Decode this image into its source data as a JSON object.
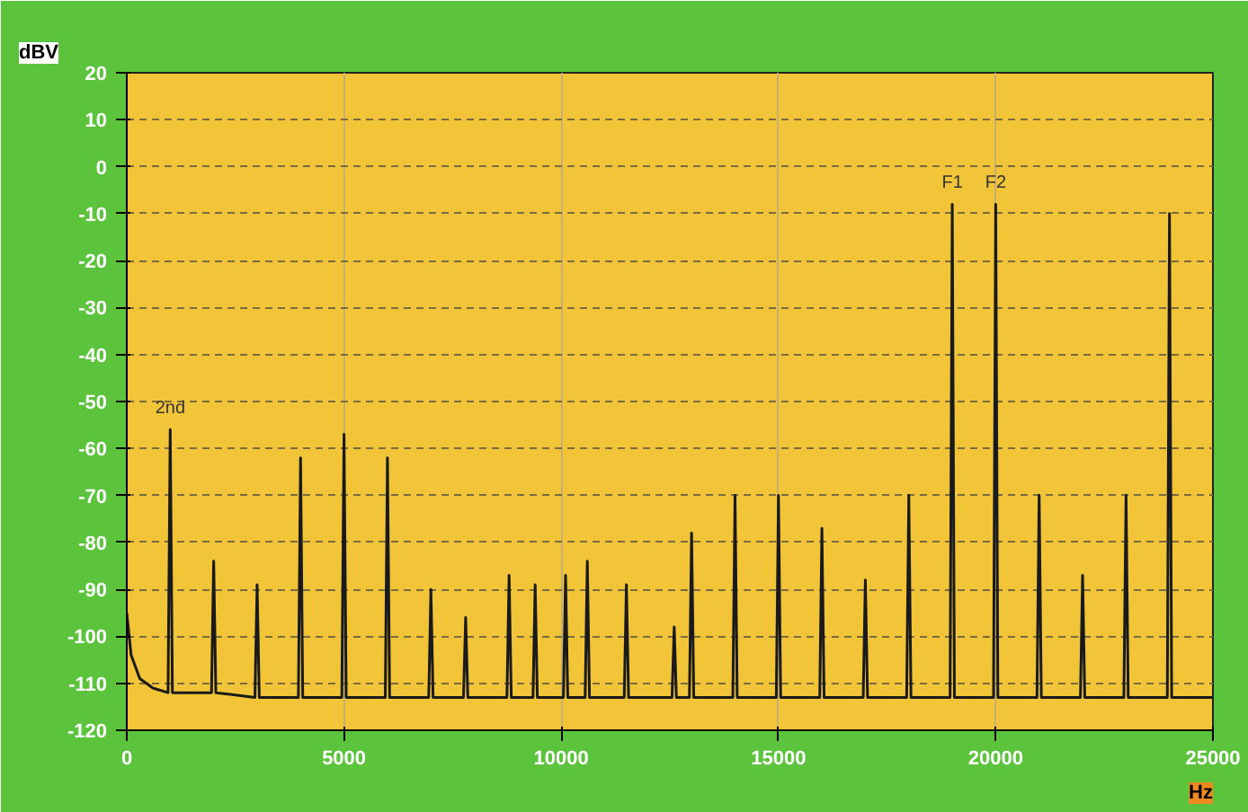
{
  "chart_data": {
    "type": "line",
    "xlabel": "Hz",
    "ylabel": "dBV",
    "xlim": [
      0,
      25000
    ],
    "ylim": [
      -120,
      20
    ],
    "xticks": [
      0,
      5000,
      10000,
      15000,
      20000,
      25000
    ],
    "yticks": [
      20,
      10,
      0,
      -10,
      -20,
      -30,
      -40,
      -50,
      -60,
      -70,
      -80,
      -90,
      -100,
      -110,
      -120
    ],
    "grid": true,
    "line_style": "solid",
    "annotations": [
      {
        "text": "2nd",
        "x": 1000,
        "y": -56
      },
      {
        "text": "F1",
        "x": 19000,
        "y": -8
      },
      {
        "text": "F2",
        "x": 20000,
        "y": -8
      }
    ],
    "series": [
      {
        "color": "#1a1a1a",
        "x": [
          0,
          100,
          300,
          600,
          950,
          1000,
          1050,
          1950,
          2000,
          2050,
          2950,
          3000,
          3050,
          3950,
          4000,
          4050,
          4950,
          5000,
          5050,
          5950,
          6000,
          6050,
          6950,
          7000,
          7050,
          7750,
          7800,
          7850,
          8750,
          8800,
          8850,
          9350,
          9400,
          9450,
          10050,
          10100,
          10150,
          10550,
          10600,
          10650,
          11450,
          11500,
          11550,
          12550,
          12600,
          12650,
          12950,
          13000,
          13050,
          13950,
          14000,
          14050,
          14950,
          15000,
          15050,
          15950,
          16000,
          16050,
          16950,
          17000,
          17050,
          17950,
          18000,
          18050,
          18950,
          19000,
          19050,
          19950,
          20000,
          20050,
          20950,
          21000,
          21050,
          21950,
          22000,
          22050,
          22950,
          23000,
          23050,
          23950,
          24000,
          24050,
          25000
        ],
        "values": [
          -95,
          -104,
          -109,
          -111,
          -112,
          -56,
          -112,
          -112,
          -84,
          -112,
          -113,
          -89,
          -113,
          -113,
          -62,
          -113,
          -113,
          -57,
          -113,
          -113,
          -62,
          -113,
          -113,
          -90,
          -113,
          -113,
          -96,
          -113,
          -113,
          -87,
          -113,
          -113,
          -89,
          -113,
          -113,
          -87,
          -113,
          -113,
          -84,
          -113,
          -113,
          -89,
          -113,
          -113,
          -98,
          -113,
          -113,
          -78,
          -113,
          -113,
          -70,
          -113,
          -113,
          -70,
          -113,
          -113,
          -77,
          -113,
          -113,
          -88,
          -113,
          -113,
          -70,
          -113,
          -113,
          -8,
          -113,
          -113,
          -8,
          -113,
          -113,
          -70,
          -113,
          -113,
          -87,
          -113,
          -113,
          -70,
          -113,
          -113,
          -10,
          -113,
          -113
        ]
      }
    ]
  }
}
